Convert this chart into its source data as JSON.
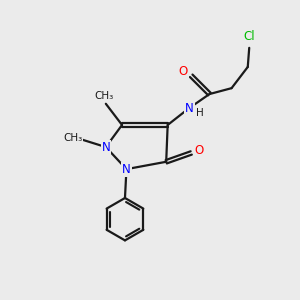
{
  "background_color": "#ebebeb",
  "bond_color": "#1a1a1a",
  "atom_colors": {
    "N": "#0000ff",
    "O": "#ff0000",
    "Cl": "#00bb00",
    "C": "#1a1a1a",
    "H": "#1a1a1a"
  },
  "figsize": [
    3.0,
    3.0
  ],
  "dpi": 100
}
